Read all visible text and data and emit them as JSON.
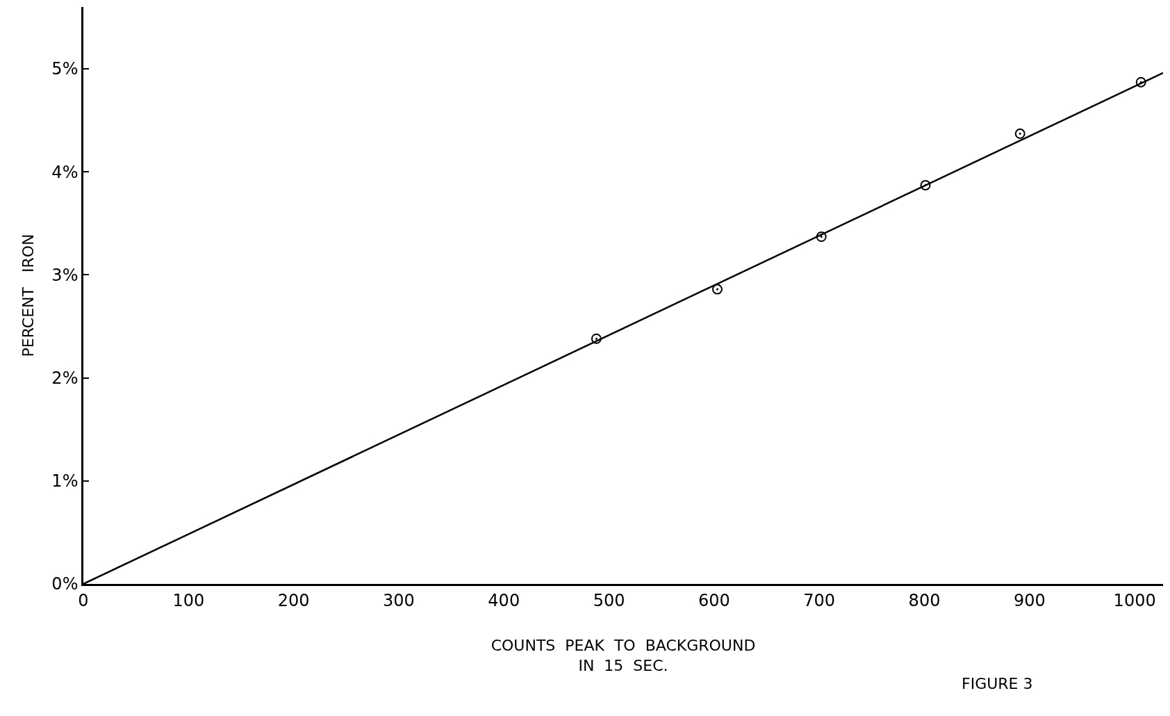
{
  "chart_data": {
    "type": "scatter",
    "xlabel": "COUNTS  PEAK  TO  BACKGROUND\nIN  15  SEC.",
    "ylabel": "PERCENT   IRON",
    "series": [
      {
        "marker": "circle",
        "color": "#000000",
        "x": [
          488,
          603,
          702,
          801,
          891,
          1006
        ],
        "values": [
          2.38,
          2.86,
          3.37,
          3.87,
          4.37,
          4.87
        ]
      },
      {
        "type": "line",
        "marker": "none",
        "color": "#000000",
        "x": [
          0,
          1027
        ],
        "values": [
          0,
          4.96
        ]
      }
    ],
    "xlim": [
      0,
      1027
    ],
    "ylim": [
      0,
      5.6
    ],
    "xticks": [
      0,
      100,
      200,
      300,
      400,
      500,
      600,
      700,
      800,
      900,
      1000
    ],
    "yticks": [
      {
        "value": 0,
        "label": "0%"
      },
      {
        "value": 1,
        "label": "1%"
      },
      {
        "value": 2,
        "label": "2%"
      },
      {
        "value": 3,
        "label": "3%"
      },
      {
        "value": 4,
        "label": "4%"
      },
      {
        "value": 5,
        "label": "5%"
      }
    ],
    "annotations": [
      "FIGURE 3"
    ]
  }
}
